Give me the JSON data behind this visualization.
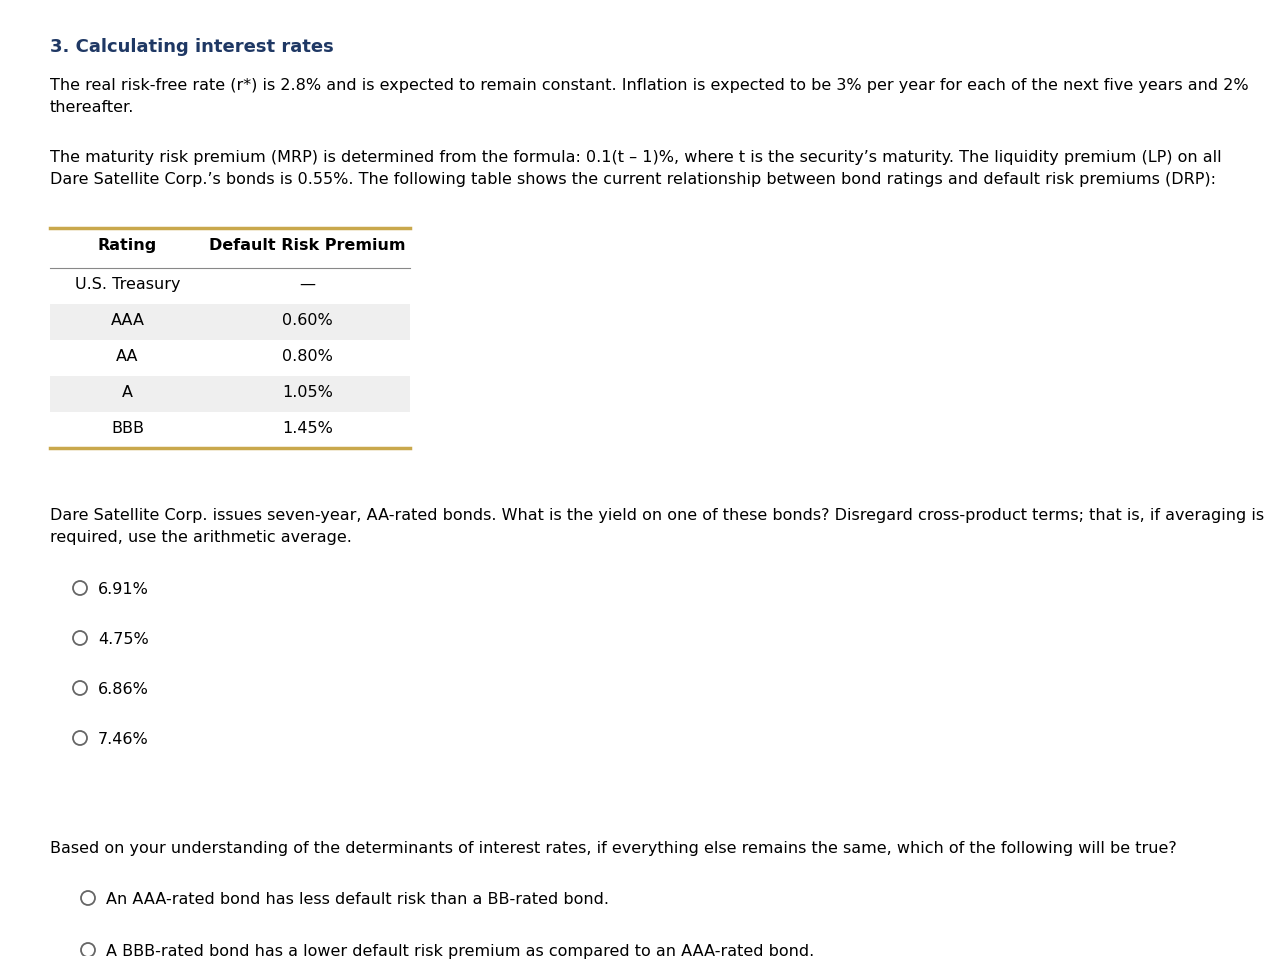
{
  "title": "3. Calculating interest rates",
  "title_color": "#1F3864",
  "bg_color": "#FFFFFF",
  "para1": "The real risk-free rate (r*) is 2.8% and is expected to remain constant. Inflation is expected to be 3% per year for each of the next five years and 2%\nthereafter.",
  "para2": "The maturity risk premium (MRP) is determined from the formula: 0.1(t – 1)%, where t is the security’s maturity. The liquidity premium (LP) on all\nDare Satellite Corp.’s bonds is 0.55%. The following table shows the current relationship between bond ratings and default risk premiums (DRP):",
  "table_headers": [
    "Rating",
    "Default Risk Premium"
  ],
  "table_rows": [
    [
      "U.S. Treasury",
      "—"
    ],
    [
      "AAA",
      "0.60%"
    ],
    [
      "AA",
      "0.80%"
    ],
    [
      "A",
      "1.05%"
    ],
    [
      "BBB",
      "1.45%"
    ]
  ],
  "table_shaded_rows": [
    1,
    3
  ],
  "question1": "Dare Satellite Corp. issues seven-year, AA-rated bonds. What is the yield on one of these bonds? Disregard cross-product terms; that is, if averaging is\nrequired, use the arithmetic average.",
  "options1": [
    "6.91%",
    "4.75%",
    "6.86%",
    "7.46%"
  ],
  "question2": "Based on your understanding of the determinants of interest rates, if everything else remains the same, which of the following will be true?",
  "options2": [
    "An AAA-rated bond has less default risk than a BB-rated bond.",
    "A BBB-rated bond has a lower default risk premium as compared to an AAA-rated bond."
  ],
  "text_color": "#000000",
  "table_line_color": "#C9A84C",
  "table_shaded_color": "#EFEFEF",
  "font_size_title": 13,
  "font_size_body": 11.5,
  "font_size_table": 11.5
}
